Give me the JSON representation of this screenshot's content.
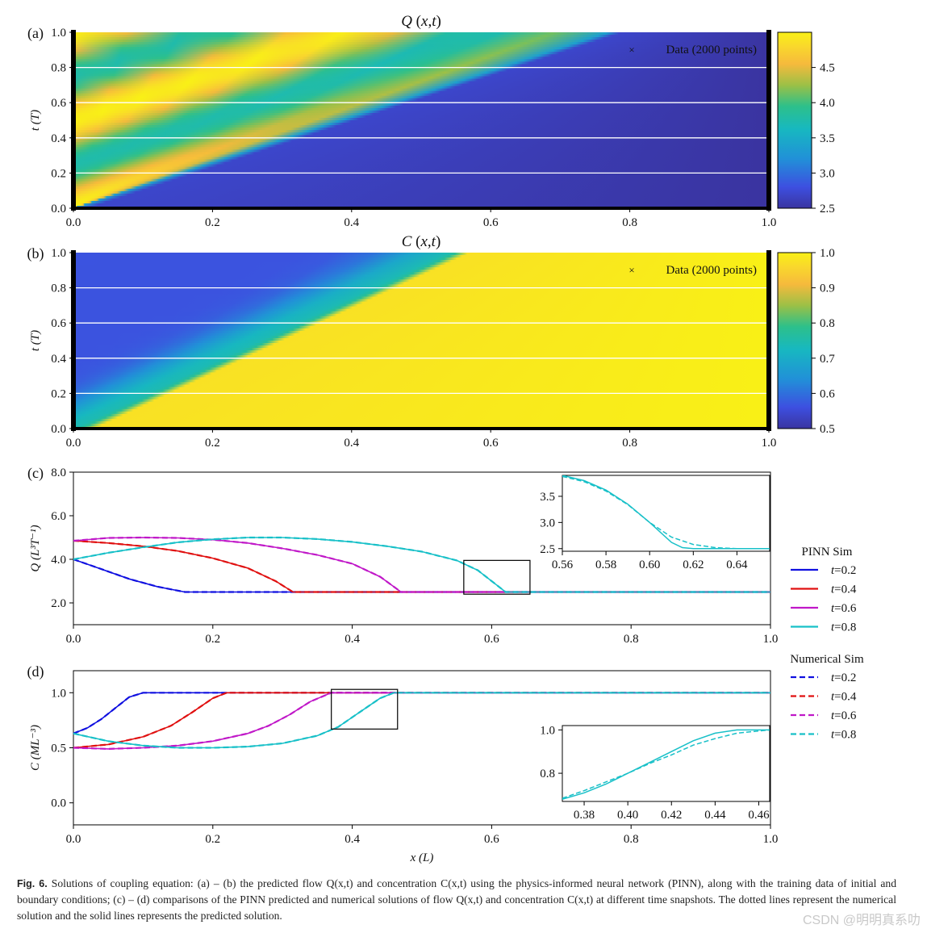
{
  "figure": {
    "caption_label": "Fig. 6.",
    "caption_text": "Solutions of coupling equation: (a) – (b) the predicted flow Q(x,t) and concentration C(x,t) using the physics-informed neural network (PINN), along with the training data of initial and boundary conditions; (c) – (d) comparisons of the PINN predicted and numerical solutions of flow Q(x,t) and concentration C(x,t) at different time snapshots. The dotted lines represent the numerical solution and the solid lines represents the predicted solution.",
    "watermark": "CSDN @明明真系叻"
  },
  "chart_data": [
    {
      "panel": "(a)",
      "type": "heatmap",
      "title": "Q (x,t)",
      "xlabel": "",
      "ylabel": "t (T)",
      "xlim": [
        0,
        1
      ],
      "ylim": [
        0,
        1
      ],
      "xticks": [
        "0.0",
        "0.2",
        "0.4",
        "0.6",
        "0.8",
        "1.0"
      ],
      "yticks": [
        "0.0",
        "0.2",
        "0.4",
        "0.6",
        "0.8",
        "1.0"
      ],
      "legend": "Data (2000 points)",
      "legend_position": "top-right",
      "colorbar": {
        "range": [
          2.5,
          5.0
        ],
        "ticks": [
          "2.5",
          "3.0",
          "3.5",
          "4.0",
          "4.5"
        ]
      },
      "front_speed": 0.77,
      "colors": {
        "low": "#3a34a0",
        "high": "#f9f016"
      }
    },
    {
      "panel": "(b)",
      "type": "heatmap",
      "title": "C (x,t)",
      "xlabel": "",
      "ylabel": "t (T)",
      "xlim": [
        0,
        1
      ],
      "ylim": [
        0,
        1
      ],
      "xticks": [
        "0.0",
        "0.2",
        "0.4",
        "0.6",
        "0.8",
        "1.0"
      ],
      "yticks": [
        "0.0",
        "0.2",
        "0.4",
        "0.6",
        "0.8",
        "1.0"
      ],
      "legend": "Data (2000 points)",
      "legend_position": "top-right",
      "colorbar": {
        "range": [
          0.5,
          1.0
        ],
        "ticks": [
          "0.5",
          "0.6",
          "0.7",
          "0.8",
          "0.9",
          "1.0"
        ]
      },
      "front_speed": 0.54
    },
    {
      "panel": "(c)",
      "type": "line",
      "xlabel": "",
      "ylabel": "Q (L³T⁻¹)",
      "xlim": [
        0,
        1
      ],
      "ylim": [
        1.0,
        8.0
      ],
      "xticks": [
        "0.0",
        "0.2",
        "0.4",
        "0.6",
        "0.8",
        "1.0"
      ],
      "yticks": [
        "2.0",
        "4.0",
        "6.0",
        "8.0"
      ],
      "series": [
        {
          "name": "t=0.2",
          "color": "#1010e0",
          "x": [
            0.0,
            0.04,
            0.08,
            0.12,
            0.16,
            0.2,
            0.3,
            0.5,
            0.8,
            1.0
          ],
          "values": [
            4.0,
            3.55,
            3.1,
            2.75,
            2.5,
            2.5,
            2.5,
            2.5,
            2.5,
            2.5
          ]
        },
        {
          "name": "t=0.4",
          "color": "#e01010",
          "x": [
            0.0,
            0.05,
            0.1,
            0.15,
            0.2,
            0.25,
            0.29,
            0.315,
            0.4,
            0.6,
            1.0
          ],
          "values": [
            4.85,
            4.75,
            4.6,
            4.38,
            4.05,
            3.6,
            3.0,
            2.5,
            2.5,
            2.5,
            2.5
          ]
        },
        {
          "name": "t=0.6",
          "color": "#c018c8",
          "x": [
            0.0,
            0.05,
            0.1,
            0.15,
            0.2,
            0.25,
            0.3,
            0.35,
            0.4,
            0.44,
            0.47,
            0.5,
            0.7,
            1.0
          ],
          "values": [
            4.85,
            4.98,
            5.0,
            4.98,
            4.9,
            4.75,
            4.5,
            4.2,
            3.8,
            3.2,
            2.5,
            2.5,
            2.5,
            2.5
          ]
        },
        {
          "name": "t=0.8",
          "color": "#18c0c8",
          "x": [
            0.0,
            0.05,
            0.1,
            0.15,
            0.2,
            0.25,
            0.3,
            0.35,
            0.4,
            0.45,
            0.5,
            0.55,
            0.58,
            0.6,
            0.62,
            0.7,
            1.0
          ],
          "values": [
            4.0,
            4.3,
            4.55,
            4.78,
            4.92,
            5.0,
            5.0,
            4.93,
            4.8,
            4.6,
            4.35,
            3.95,
            3.5,
            3.0,
            2.5,
            2.5,
            2.5
          ]
        }
      ],
      "legend_groups": [
        {
          "title": "PINN Sim",
          "style": "solid",
          "entries": [
            "t=0.2",
            "t=0.4",
            "t=0.6",
            "t=0.8"
          ]
        },
        {
          "title": "Numerical Sim",
          "style": "dashed",
          "entries": [
            "t=0.2",
            "t=0.4",
            "t=0.6",
            "t=0.8"
          ]
        }
      ],
      "zoom_box": {
        "x": [
          0.56,
          0.655
        ],
        "y": [
          2.4,
          3.95
        ]
      },
      "inset": {
        "xlim": [
          0.56,
          0.655
        ],
        "ylim": [
          2.45,
          3.9
        ],
        "xticks": [
          "0.56",
          "0.58",
          "0.60",
          "0.62",
          "0.64"
        ],
        "yticks": [
          "2.5",
          "3.0",
          "3.5"
        ],
        "series": [
          {
            "name": "PINN t=0.8",
            "style": "solid",
            "x": [
              0.56,
              0.57,
              0.58,
              0.59,
              0.6,
              0.61,
              0.615,
              0.62,
              0.63,
              0.655
            ],
            "values": [
              3.9,
              3.8,
              3.62,
              3.35,
              3.0,
              2.62,
              2.52,
              2.5,
              2.5,
              2.5
            ]
          },
          {
            "name": "Numerical t=0.8",
            "style": "dashed",
            "x": [
              0.56,
              0.57,
              0.58,
              0.59,
              0.6,
              0.61,
              0.62,
              0.63,
              0.64,
              0.655
            ],
            "values": [
              3.88,
              3.78,
              3.6,
              3.34,
              3.0,
              2.72,
              2.58,
              2.52,
              2.5,
              2.5
            ]
          }
        ]
      }
    },
    {
      "panel": "(d)",
      "type": "line",
      "xlabel": "x (L)",
      "ylabel": "C (ML⁻³)",
      "xlim": [
        0,
        1
      ],
      "ylim": [
        -0.2,
        1.2
      ],
      "xticks": [
        "0.0",
        "0.2",
        "0.4",
        "0.6",
        "0.8",
        "1.0"
      ],
      "yticks": [
        "0.0",
        "0.5",
        "1.0"
      ],
      "series": [
        {
          "name": "t=0.2",
          "color": "#1010e0",
          "x": [
            0.0,
            0.02,
            0.04,
            0.06,
            0.08,
            0.1,
            0.12,
            0.2,
            0.5,
            1.0
          ],
          "values": [
            0.63,
            0.68,
            0.76,
            0.86,
            0.96,
            1.0,
            1.0,
            1.0,
            1.0,
            1.0
          ]
        },
        {
          "name": "t=0.4",
          "color": "#e01010",
          "x": [
            0.0,
            0.05,
            0.1,
            0.14,
            0.17,
            0.2,
            0.22,
            0.3,
            0.6,
            1.0
          ],
          "values": [
            0.5,
            0.53,
            0.6,
            0.7,
            0.82,
            0.95,
            1.0,
            1.0,
            1.0,
            1.0
          ]
        },
        {
          "name": "t=0.6",
          "color": "#c018c8",
          "x": [
            0.0,
            0.05,
            0.1,
            0.15,
            0.2,
            0.25,
            0.28,
            0.31,
            0.34,
            0.37,
            0.4,
            0.6,
            1.0
          ],
          "values": [
            0.5,
            0.49,
            0.5,
            0.52,
            0.56,
            0.63,
            0.7,
            0.8,
            0.92,
            1.0,
            1.0,
            1.0,
            1.0
          ]
        },
        {
          "name": "t=0.8",
          "color": "#18c0c8",
          "x": [
            0.0,
            0.05,
            0.1,
            0.15,
            0.2,
            0.25,
            0.3,
            0.35,
            0.38,
            0.41,
            0.44,
            0.46,
            0.5,
            0.7,
            1.0
          ],
          "values": [
            0.63,
            0.56,
            0.52,
            0.5,
            0.5,
            0.51,
            0.54,
            0.61,
            0.69,
            0.82,
            0.95,
            1.0,
            1.0,
            1.0,
            1.0
          ]
        }
      ],
      "zoom_box": {
        "x": [
          0.37,
          0.465
        ],
        "y": [
          0.67,
          1.03
        ]
      },
      "inset": {
        "xlim": [
          0.37,
          0.465
        ],
        "ylim": [
          0.67,
          1.02
        ],
        "xticks": [
          "0.38",
          "0.40",
          "0.42",
          "0.44",
          "0.46"
        ],
        "yticks": [
          "0.8",
          "1.0"
        ],
        "series": [
          {
            "name": "PINN t=0.8",
            "style": "solid",
            "x": [
              0.37,
              0.38,
              0.39,
              0.4,
              0.41,
              0.42,
              0.43,
              0.44,
              0.45,
              0.46,
              0.465
            ],
            "values": [
              0.68,
              0.71,
              0.75,
              0.8,
              0.85,
              0.9,
              0.95,
              0.985,
              1.0,
              1.0,
              1.0
            ]
          },
          {
            "name": "Numerical t=0.8",
            "style": "dashed",
            "x": [
              0.37,
              0.38,
              0.39,
              0.4,
              0.41,
              0.42,
              0.43,
              0.44,
              0.45,
              0.46,
              0.465
            ],
            "values": [
              0.685,
              0.72,
              0.76,
              0.8,
              0.845,
              0.885,
              0.93,
              0.96,
              0.985,
              0.995,
              1.0
            ]
          }
        ]
      }
    }
  ]
}
